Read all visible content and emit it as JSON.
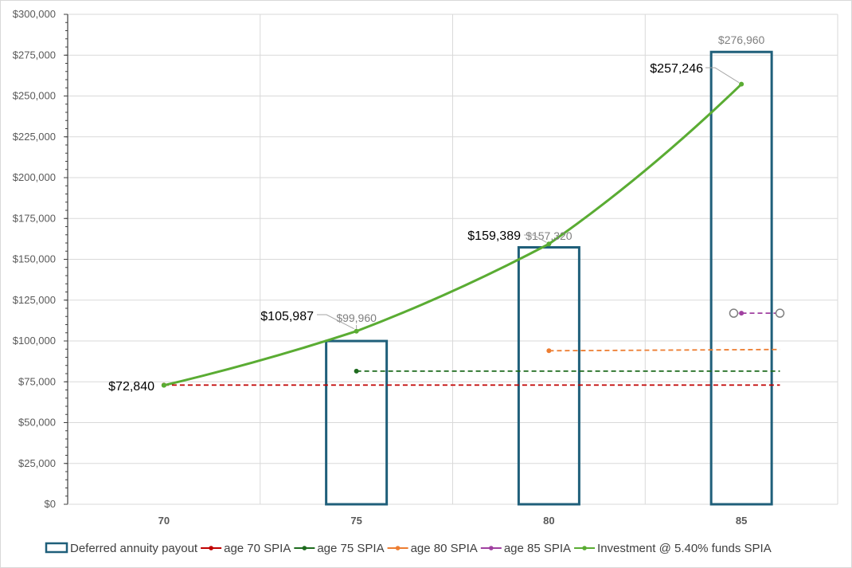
{
  "chart_data": {
    "type": "bar",
    "categories": [
      "70",
      "75",
      "80",
      "85"
    ],
    "ylim": [
      0,
      300000
    ],
    "y_tick_labels": [
      "$0",
      "$25,000",
      "$50,000",
      "$75,000",
      "$100,000",
      "$125,000",
      "$150,000",
      "$175,000",
      "$200,000",
      "$225,000",
      "$250,000",
      "$275,000",
      "$300,000"
    ],
    "grid": true,
    "legend_position": "bottom",
    "series": [
      {
        "name": "Deferred annuity payout",
        "type": "bar",
        "color": "#1f5f7a",
        "values": [
          null,
          99960,
          157320,
          276960
        ],
        "labels": [
          "",
          "$99,960",
          "$157,320",
          "$276,960"
        ]
      },
      {
        "name": "age 70 SPIA",
        "type": "line",
        "dash": true,
        "color": "#c00000",
        "points": [
          {
            "x": 70,
            "y": 73000
          },
          {
            "x": 86,
            "y": 73000
          }
        ]
      },
      {
        "name": "age 75 SPIA",
        "type": "line",
        "dash": true,
        "color": "#1e6b1e",
        "points": [
          {
            "x": 75,
            "y": 81500
          },
          {
            "x": 86,
            "y": 81500
          }
        ]
      },
      {
        "name": "age 80 SPIA",
        "type": "line",
        "dash": true,
        "color": "#ed7d31",
        "points": [
          {
            "x": 80,
            "y": 94000
          },
          {
            "x": 86,
            "y": 94800
          }
        ]
      },
      {
        "name": "age 85 SPIA",
        "type": "line",
        "dash": true,
        "color": "#a040a0",
        "points": [
          {
            "x": 84.8,
            "y": 117000
          },
          {
            "x": 85,
            "y": 117000
          },
          {
            "x": 86,
            "y": 117000
          }
        ]
      },
      {
        "name": "Investment @ 5.40% funds SPIA",
        "type": "line",
        "color": "#5aac33",
        "points": [
          {
            "x": 70,
            "y": 72840
          },
          {
            "x": 75,
            "y": 105987
          },
          {
            "x": 80,
            "y": 159389
          },
          {
            "x": 85,
            "y": 257246
          }
        ],
        "labels": [
          "$72,840",
          "$105,987",
          "$159,389",
          "$257,246"
        ]
      }
    ]
  }
}
